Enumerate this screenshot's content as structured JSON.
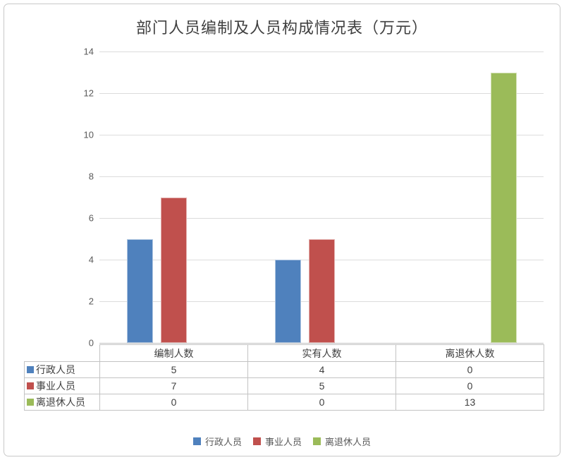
{
  "chart_data": {
    "type": "bar",
    "title": "部门人员编制及人员构成情况表（万元）",
    "categories": [
      "编制人数",
      "实有人数",
      "离退休人数"
    ],
    "series": [
      {
        "name": "行政人员",
        "color": "#4F81BD",
        "values": [
          5,
          4,
          0
        ]
      },
      {
        "name": "事业人员",
        "color": "#C0504D",
        "values": [
          7,
          5,
          0
        ]
      },
      {
        "name": "离退休人员",
        "color": "#9BBB59",
        "values": [
          0,
          0,
          13
        ]
      }
    ],
    "xlabel": "",
    "ylabel": "",
    "ylim": [
      0,
      14
    ],
    "y_ticks": [
      0,
      2,
      4,
      6,
      8,
      10,
      12,
      14
    ],
    "grid": true,
    "legend_position": "bottom",
    "data_table_shown": true
  },
  "colors": {
    "gridline": "#dcdcdc",
    "axis_line": "#bfbfbf",
    "table_border": "#c3c3c3",
    "tick_text": "#595959",
    "title_text": "#404040",
    "frame_border": "#c9c9c9"
  }
}
